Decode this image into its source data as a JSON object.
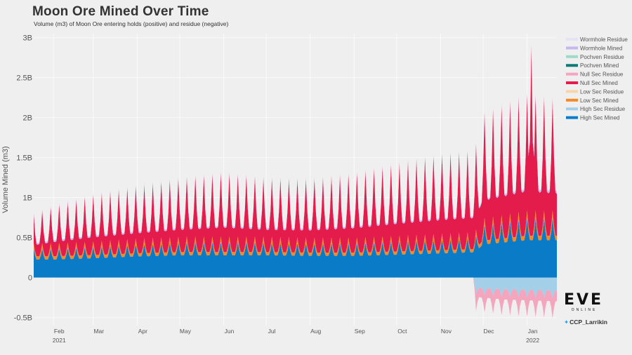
{
  "title": "Moon Ore Mined Over Time",
  "subtitle": "Volume (m3) of Moon Ore entering holds (positive) and residue (negative)",
  "credit": "CCP_Larrikin",
  "logo": {
    "text": "EVE",
    "subtext": "ONLINE"
  },
  "chart_data": {
    "type": "area",
    "stacked": true,
    "ylabel": "Volume Mined (m3)",
    "ylim": [
      -0.6,
      3.05
    ],
    "yticks": [
      {
        "value": 3,
        "label": "3B"
      },
      {
        "value": 2.5,
        "label": "2.5B"
      },
      {
        "value": 2,
        "label": "2B"
      },
      {
        "value": 1.5,
        "label": "1.5B"
      },
      {
        "value": 1,
        "label": "1B"
      },
      {
        "value": 0.5,
        "label": "0.5B"
      },
      {
        "value": 0,
        "label": "0"
      },
      {
        "value": -0.5,
        "label": "-0.5B"
      }
    ],
    "xlim": [
      "2021-01-18",
      "2022-01-22"
    ],
    "xticks": [
      {
        "date": "2021-02-01",
        "label": "Feb",
        "sub": "2021"
      },
      {
        "date": "2021-03-01",
        "label": "Mar"
      },
      {
        "date": "2021-04-01",
        "label": "Apr"
      },
      {
        "date": "2021-05-01",
        "label": "May"
      },
      {
        "date": "2021-06-01",
        "label": "Jun"
      },
      {
        "date": "2021-07-01",
        "label": "Jul"
      },
      {
        "date": "2021-08-01",
        "label": "Aug"
      },
      {
        "date": "2021-09-01",
        "label": "Sep"
      },
      {
        "date": "2021-10-01",
        "label": "Oct"
      },
      {
        "date": "2021-11-01",
        "label": "Nov"
      },
      {
        "date": "2021-12-01",
        "label": "Dec"
      },
      {
        "date": "2022-01-01",
        "label": "Jan",
        "sub": "2022"
      }
    ],
    "legend_position": "right",
    "legend": [
      {
        "name": "Wormhole Residue",
        "color": "#e6e2f5"
      },
      {
        "name": "Wormhole Mined",
        "color": "#c7b7ef"
      },
      {
        "name": "Pochven Residue",
        "color": "#9fd9c9"
      },
      {
        "name": "Pochven Mined",
        "color": "#117a77"
      },
      {
        "name": "Null Sec Residue",
        "color": "#f3a6bd"
      },
      {
        "name": "Null Sec Mined",
        "color": "#e41c4c"
      },
      {
        "name": "Low Sec Residue",
        "color": "#f7d4a9"
      },
      {
        "name": "Low Sec Mined",
        "color": "#f08a2a"
      },
      {
        "name": "High Sec Residue",
        "color": "#a3cfe9"
      },
      {
        "name": "High Sec Mined",
        "color": "#0a7cc7"
      }
    ],
    "series_points": [
      {
        "date": "2021-01-18",
        "high": 0.3,
        "low": 0.05,
        "null": 0.25,
        "wh": 0.02
      },
      {
        "date": "2021-02-01",
        "high": 0.3,
        "low": 0.05,
        "null": 0.32,
        "wh": 0.02
      },
      {
        "date": "2021-03-01",
        "high": 0.32,
        "low": 0.05,
        "null": 0.4,
        "wh": 0.02
      },
      {
        "date": "2021-04-01",
        "high": 0.35,
        "low": 0.05,
        "null": 0.45,
        "wh": 0.02
      },
      {
        "date": "2021-05-01",
        "high": 0.37,
        "low": 0.05,
        "null": 0.5,
        "wh": 0.02
      },
      {
        "date": "2021-06-01",
        "high": 0.37,
        "low": 0.05,
        "null": 0.55,
        "wh": 0.02
      },
      {
        "date": "2021-07-01",
        "high": 0.37,
        "low": 0.05,
        "null": 0.5,
        "wh": 0.02
      },
      {
        "date": "2021-08-01",
        "high": 0.36,
        "low": 0.05,
        "null": 0.5,
        "wh": 0.02
      },
      {
        "date": "2021-09-01",
        "high": 0.36,
        "low": 0.05,
        "null": 0.55,
        "wh": 0.02
      },
      {
        "date": "2021-10-01",
        "high": 0.38,
        "low": 0.05,
        "null": 0.62,
        "wh": 0.02
      },
      {
        "date": "2021-11-01",
        "high": 0.4,
        "low": 0.05,
        "null": 0.68,
        "wh": 0.02
      },
      {
        "date": "2021-11-25",
        "high": 0.42,
        "low": 0.05,
        "null": 0.7,
        "wh": 0.02
      },
      {
        "date": "2021-12-01",
        "high": 0.55,
        "low": 0.06,
        "null": 0.9,
        "wh": 0.02
      },
      {
        "date": "2022-01-01",
        "high": 0.62,
        "low": 0.07,
        "null": 1.0,
        "wh": 0.03
      },
      {
        "date": "2022-01-22",
        "high": 0.62,
        "low": 0.07,
        "null": 0.95,
        "wh": 0.03
      }
    ],
    "residue_start": "2021-11-24",
    "residue_points": [
      {
        "date": "2021-11-24",
        "high": 0.0,
        "null": 0.0
      },
      {
        "date": "2021-11-26",
        "high": -0.16,
        "null": -0.15
      },
      {
        "date": "2021-12-15",
        "high": -0.18,
        "null": -0.17
      },
      {
        "date": "2022-01-22",
        "high": -0.2,
        "null": -0.18
      }
    ],
    "peaks": [
      {
        "date": "2022-01-04",
        "total": 2.92
      }
    ]
  }
}
